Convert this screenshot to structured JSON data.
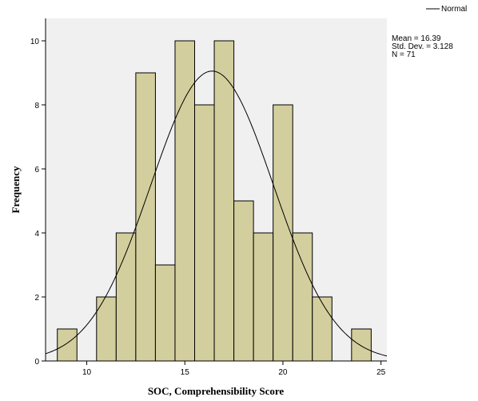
{
  "chart_data": {
    "type": "bar",
    "subtype": "histogram",
    "xlabel": "SOC, Comprehensibility Score",
    "ylabel": "Frequency",
    "xlim": [
      7.9,
      25.3
    ],
    "ylim": [
      0,
      10.7
    ],
    "x_ticks": [
      10,
      15,
      20,
      25
    ],
    "y_ticks": [
      0,
      2,
      4,
      6,
      8,
      10
    ],
    "bin_width": 1,
    "bins": [
      {
        "start": 8.5,
        "end": 9.5,
        "value": 1
      },
      {
        "start": 10.5,
        "end": 11.5,
        "value": 2
      },
      {
        "start": 11.5,
        "end": 12.5,
        "value": 4
      },
      {
        "start": 12.5,
        "end": 13.5,
        "value": 9
      },
      {
        "start": 13.5,
        "end": 14.5,
        "value": 3
      },
      {
        "start": 14.5,
        "end": 15.5,
        "value": 10
      },
      {
        "start": 15.5,
        "end": 16.5,
        "value": 8
      },
      {
        "start": 16.5,
        "end": 17.5,
        "value": 10
      },
      {
        "start": 17.5,
        "end": 18.5,
        "value": 5
      },
      {
        "start": 18.5,
        "end": 19.5,
        "value": 4
      },
      {
        "start": 19.5,
        "end": 20.5,
        "value": 8
      },
      {
        "start": 20.5,
        "end": 21.5,
        "value": 4
      },
      {
        "start": 21.5,
        "end": 22.5,
        "value": 2
      },
      {
        "start": 23.5,
        "end": 24.5,
        "value": 1
      }
    ],
    "normal_curve": {
      "mean": 16.39,
      "std_dev": 3.128,
      "n": 71
    },
    "stats_lines": [
      "Mean = 16.39",
      "Std. Dev. = 3.128",
      "N = 71"
    ],
    "legend": {
      "entries": [
        "Normal"
      ],
      "position": "top-right"
    },
    "colors": {
      "bar_fill": "#D3CE9D",
      "bar_stroke": "#000000",
      "plot_bg": "#F0F0F0",
      "curve": "#000000"
    }
  }
}
